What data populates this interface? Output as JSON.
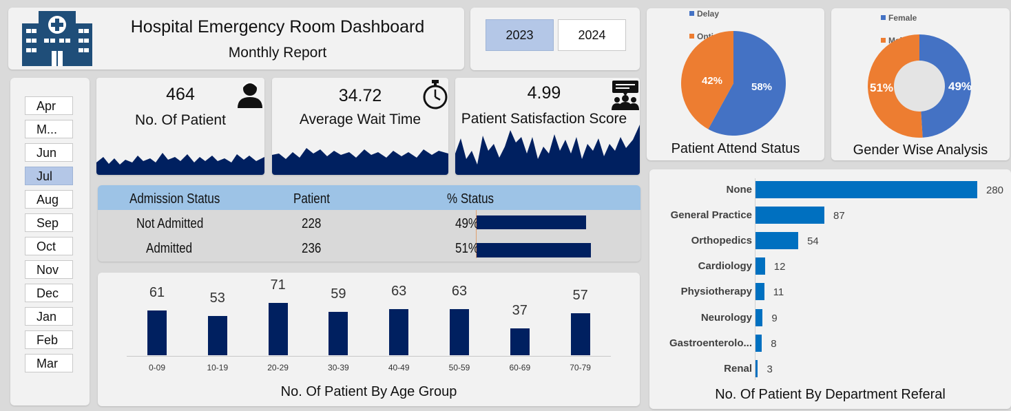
{
  "header": {
    "title": "Hospital Emergency Room Dashboard",
    "subtitle": "Monthly Report",
    "logo_icon": "hospital-icon"
  },
  "years": [
    {
      "label": "2023",
      "selected": true
    },
    {
      "label": "2024",
      "selected": false
    }
  ],
  "months": [
    {
      "label": "Apr",
      "selected": false
    },
    {
      "label": "M...",
      "selected": false
    },
    {
      "label": "Jun",
      "selected": false
    },
    {
      "label": "Jul",
      "selected": true
    },
    {
      "label": "Aug",
      "selected": false
    },
    {
      "label": "Sep",
      "selected": false
    },
    {
      "label": "Oct",
      "selected": false
    },
    {
      "label": "Nov",
      "selected": false
    },
    {
      "label": "Dec",
      "selected": false
    },
    {
      "label": "Jan",
      "selected": false
    },
    {
      "label": "Feb",
      "selected": false
    },
    {
      "label": "Mar",
      "selected": false
    }
  ],
  "kpis": {
    "patients": {
      "value": "464",
      "label": "No. Of Patient",
      "icon": "patient-icon"
    },
    "wait": {
      "value": "34.72",
      "label": "Average Wait Time",
      "icon": "stopwatch-icon"
    },
    "satisfaction": {
      "value": "4.99",
      "label": "Patient Satisfaction Score",
      "icon": "feedback-group-icon"
    }
  },
  "admission": {
    "headers": [
      "Admission Status",
      "Patient",
      "% Status"
    ],
    "rows": [
      {
        "status": "Not Admitted",
        "patient": "228",
        "pct_label": "49%",
        "pct": 49
      },
      {
        "status": "Admitted",
        "patient": "236",
        "pct_label": "51%",
        "pct": 51
      }
    ]
  },
  "colors": {
    "navy": "#002060",
    "blue": "#4472c4",
    "orange": "#ed7d31",
    "bar_blue": "#0070c0",
    "selected": "#b4c7e7"
  },
  "chart_data": [
    {
      "type": "bar",
      "title": "No. Of Patient By Age Group",
      "categories": [
        "0-09",
        "10-19",
        "20-29",
        "30-39",
        "40-49",
        "50-59",
        "60-69",
        "70-79"
      ],
      "values": [
        61,
        53,
        71,
        59,
        63,
        63,
        37,
        57
      ],
      "ylim": [
        0,
        75
      ]
    },
    {
      "type": "pie",
      "title": "Patient Attend Status",
      "labels": [
        "Delay",
        "Ontime"
      ],
      "values": [
        58,
        42
      ],
      "value_labels": [
        "58%",
        "42%"
      ]
    },
    {
      "type": "pie",
      "title": "Gender Wise Analysis",
      "labels": [
        "Female",
        "Male"
      ],
      "values": [
        49,
        51
      ],
      "value_labels": [
        "49%",
        "51%"
      ],
      "donut": true
    },
    {
      "type": "bar",
      "orientation": "horizontal",
      "title": "No. Of Patient By Department Referal",
      "categories": [
        "None",
        "General Practice",
        "Orthopedics",
        "Cardiology",
        "Physiotherapy",
        "Neurology",
        "Gastroenterolo...",
        "Renal"
      ],
      "values": [
        280,
        87,
        54,
        12,
        11,
        9,
        8,
        3
      ],
      "xlim": [
        0,
        280
      ]
    }
  ]
}
